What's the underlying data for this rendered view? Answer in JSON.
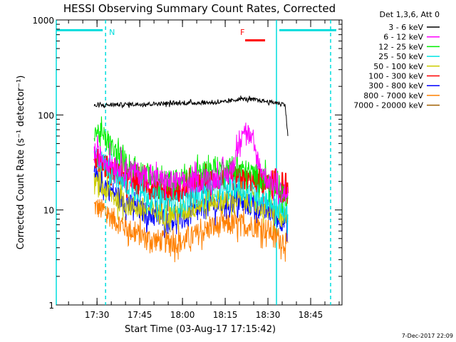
{
  "chart_data": {
    "type": "line",
    "title": "HESSI Observing Summary Count Rates, Corrected",
    "xlabel": "Start Time (03-Aug-17 17:15:42)",
    "ylabel": "Corrected Count Rate (s⁻¹ detector⁻¹)",
    "y_scale": "log",
    "ylim": [
      1,
      1000
    ],
    "y_ticks": [
      {
        "value": 1,
        "label": "1"
      },
      {
        "value": 10,
        "label": "10"
      },
      {
        "value": 100,
        "label": "100"
      },
      {
        "value": 1000,
        "label": "1000"
      }
    ],
    "xlim": [
      "17:15:42",
      "18:56:00"
    ],
    "x_ticks": [
      {
        "value": "17:30",
        "label": "17:30"
      },
      {
        "value": "17:45",
        "label": "17:45"
      },
      {
        "value": "18:00",
        "label": "18:00"
      },
      {
        "value": "18:15",
        "label": "18:15"
      },
      {
        "value": "18:30",
        "label": "18:30"
      },
      {
        "value": "18:45",
        "label": "18:45"
      }
    ],
    "legend_title": "Det 1,3,6, Att 0",
    "legend_position": "right",
    "series": [
      {
        "name": "3 - 6 keV",
        "color": "#000000",
        "x": [
          "17:29",
          "17:35",
          "17:45",
          "17:55",
          "18:05",
          "18:15",
          "18:20",
          "18:25",
          "18:30",
          "18:36",
          "18:37"
        ],
        "values": [
          125,
          128,
          130,
          132,
          134,
          136,
          148,
          145,
          138,
          130,
          60
        ]
      },
      {
        "name": "6 - 12 keV",
        "color": "#ff00ff",
        "x": [
          "17:29",
          "17:32",
          "17:36",
          "17:42",
          "17:48",
          "17:55",
          "18:02",
          "18:08",
          "18:13",
          "18:17",
          "18:19",
          "18:21",
          "18:23",
          "18:25",
          "18:27",
          "18:29",
          "18:31",
          "18:34",
          "18:37"
        ],
        "values": [
          40,
          35,
          30,
          26,
          22,
          20,
          19,
          21,
          22,
          25,
          40,
          75,
          65,
          45,
          30,
          22,
          20,
          16,
          14
        ]
      },
      {
        "name": "12 - 25 keV",
        "color": "#00ee00",
        "x": [
          "17:29",
          "17:32",
          "17:36",
          "17:40",
          "17:45",
          "17:50",
          "17:55",
          "18:00",
          "18:05",
          "18:10",
          "18:15",
          "18:20",
          "18:25",
          "18:30",
          "18:34",
          "18:37"
        ],
        "values": [
          70,
          60,
          42,
          32,
          26,
          22,
          20,
          21,
          24,
          27,
          28,
          27,
          24,
          20,
          15,
          13
        ]
      },
      {
        "name": "25 - 50 keV",
        "color": "#00e5e5",
        "x": [
          "17:29",
          "17:33",
          "17:37",
          "17:42",
          "17:48",
          "17:54",
          "18:00",
          "18:05",
          "18:10",
          "18:15",
          "18:20",
          "18:25",
          "18:30",
          "18:34",
          "18:37"
        ],
        "values": [
          38,
          30,
          22,
          17,
          14,
          12,
          12,
          14,
          16,
          17,
          17,
          15,
          13,
          10,
          9
        ]
      },
      {
        "name": "50 - 100 keV",
        "color": "#cccc00",
        "x": [
          "17:29",
          "17:33",
          "17:37",
          "17:42",
          "17:48",
          "17:54",
          "18:00",
          "18:05",
          "18:10",
          "18:15",
          "18:20",
          "18:25",
          "18:30",
          "18:34",
          "18:37"
        ],
        "values": [
          19,
          16,
          13,
          11,
          10,
          9,
          9.5,
          11,
          12.5,
          13,
          13,
          12,
          10,
          8.5,
          8
        ]
      },
      {
        "name": "100 - 300 keV",
        "color": "#ff0000",
        "x": [
          "17:29",
          "17:33",
          "17:37",
          "17:42",
          "17:48",
          "17:54",
          "18:00",
          "18:05",
          "18:10",
          "18:15",
          "18:20",
          "18:25",
          "18:30",
          "18:34",
          "18:37"
        ],
        "values": [
          33,
          29,
          25,
          21,
          18,
          16,
          16,
          18,
          20,
          21,
          21,
          20,
          18,
          16,
          15
        ]
      },
      {
        "name": "300 - 800 keV",
        "color": "#0000ff",
        "x": [
          "17:29",
          "17:33",
          "17:37",
          "17:42",
          "17:48",
          "17:54",
          "18:00",
          "18:05",
          "18:10",
          "18:15",
          "18:20",
          "18:25",
          "18:30",
          "18:34",
          "18:37"
        ],
        "values": [
          22,
          18,
          14,
          11,
          9,
          8,
          8,
          9.5,
          11,
          12,
          12,
          11,
          10,
          8,
          7.5
        ]
      },
      {
        "name": "800 - 7000 keV",
        "color": "#ff8000",
        "x": [
          "17:29",
          "17:33",
          "17:37",
          "17:42",
          "17:48",
          "17:54",
          "18:00",
          "18:05",
          "18:10",
          "18:15",
          "18:20",
          "18:25",
          "18:30",
          "18:34",
          "18:37"
        ],
        "values": [
          11,
          9.5,
          7.5,
          6,
          5,
          4.6,
          4.6,
          5.5,
          6.5,
          7,
          7,
          6.8,
          6.2,
          5,
          4.5
        ]
      },
      {
        "name": "7000 - 20000 keV",
        "color": "#a06000",
        "x": [],
        "values": []
      }
    ],
    "annotations": [
      {
        "text": "N",
        "color": "#00dddd",
        "x": "17:33"
      },
      {
        "text": "F",
        "color": "#ff0000",
        "x": "18:19"
      }
    ],
    "attenuator_bars": [
      {
        "color": "#00dddd",
        "x_start": "17:15:42",
        "x_end": "17:32",
        "value": 780
      },
      {
        "color": "#00dddd",
        "x_start": "18:34",
        "x_end": "18:54",
        "value": 780
      },
      {
        "color": "#ff0000",
        "x_start": "18:22",
        "x_end": "18:29",
        "value": 610
      }
    ],
    "vertical_lines": [
      {
        "x": "17:15:42",
        "style": "solid",
        "color": "#00dddd"
      },
      {
        "x": "17:33",
        "style": "dashed",
        "color": "#00dddd"
      },
      {
        "x": "18:33",
        "style": "solid",
        "color": "#00dddd"
      },
      {
        "x": "18:52",
        "style": "dashed",
        "color": "#00dddd"
      }
    ],
    "grid": false
  },
  "footer_date": "7-Dec-2017 22:09"
}
